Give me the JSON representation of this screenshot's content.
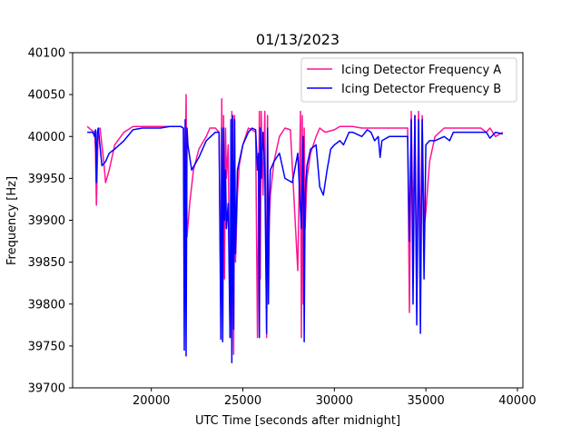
{
  "chart_data": {
    "type": "line",
    "title": "01/13/2023",
    "xlabel": "UTC Time [seconds after midnight]",
    "ylabel": "Frequency [Hz]",
    "xlim": [
      15700,
      40300
    ],
    "ylim": [
      39700,
      40100
    ],
    "xticks": [
      20000,
      25000,
      30000,
      35000,
      40000
    ],
    "xtick_labels": [
      "20000",
      "25000",
      "30000",
      "35000",
      "40000"
    ],
    "yticks": [
      39700,
      39750,
      39800,
      39850,
      39900,
      39950,
      40000,
      40050,
      40100
    ],
    "ytick_labels": [
      "39700",
      "39750",
      "39800",
      "39850",
      "39900",
      "39950",
      "40000",
      "40050",
      "40100"
    ],
    "grid": false,
    "legend_position": "top-right",
    "series": [
      {
        "name": "Icing Detector Frequency A",
        "color": "#ff1493",
        "x": [
          16500,
          16700,
          16900,
          16950,
          17000,
          17050,
          17100,
          17200,
          17400,
          17500,
          17700,
          18000,
          18500,
          19000,
          19500,
          20500,
          21000,
          21600,
          21750,
          21850,
          21900,
          21950,
          22100,
          22300,
          22600,
          23000,
          23200,
          23500,
          23700,
          23800,
          23850,
          23900,
          23950,
          24000,
          24050,
          24100,
          24200,
          24300,
          24400,
          24500,
          24550,
          24600,
          24700,
          24800,
          25000,
          25300,
          25500,
          25700,
          25800,
          25900,
          25950,
          26000,
          26100,
          26200,
          26300,
          26350,
          26400,
          26450,
          26500,
          26700,
          27000,
          27300,
          27600,
          28000,
          28150,
          28200,
          28250,
          28300,
          28350,
          28400,
          28500,
          28700,
          29000,
          29200,
          29500,
          30000,
          30300,
          31000,
          31500,
          32000,
          33000,
          33500,
          34000,
          34100,
          34200,
          34300,
          34400,
          34500,
          34600,
          34700,
          34800,
          34900,
          35000,
          35200,
          35500,
          36000,
          37000,
          38000,
          38300,
          38500,
          38800,
          39200
        ],
        "y": [
          40012,
          40008,
          40005,
          39985,
          39918,
          39965,
          40008,
          40010,
          39970,
          39945,
          39960,
          39990,
          40005,
          40012,
          40012,
          40012,
          40012,
          40012,
          40010,
          39950,
          40050,
          39880,
          39920,
          39960,
          39985,
          40000,
          40010,
          40010,
          40005,
          39790,
          40045,
          39760,
          40025,
          39830,
          40010,
          39950,
          39990,
          39760,
          40030,
          39740,
          40025,
          39850,
          39930,
          39965,
          39990,
          40010,
          40008,
          40005,
          39760,
          40030,
          39830,
          40030,
          39930,
          40030,
          39760,
          40025,
          39850,
          39900,
          39930,
          39970,
          40000,
          40010,
          40008,
          39840,
          40030,
          39760,
          40025,
          39800,
          40010,
          39890,
          39950,
          39980,
          40000,
          40010,
          40005,
          40008,
          40012,
          40012,
          40010,
          40010,
          40010,
          40010,
          40010,
          39790,
          40030,
          39880,
          40025,
          39810,
          40030,
          39850,
          40025,
          39890,
          39910,
          39970,
          40000,
          40010,
          40010,
          40010,
          40005,
          40010,
          40000,
          40005
        ]
      },
      {
        "name": "Icing Detector Frequency B",
        "color": "#0000ff",
        "x": [
          16500,
          16800,
          16900,
          16950,
          17000,
          17050,
          17100,
          17300,
          17500,
          17700,
          18000,
          18500,
          19000,
          19500,
          20500,
          21000,
          21600,
          21750,
          21800,
          21850,
          21900,
          21950,
          22000,
          22200,
          22600,
          23000,
          23500,
          23700,
          23800,
          23850,
          23900,
          23950,
          24000,
          24050,
          24100,
          24200,
          24300,
          24350,
          24400,
          24450,
          24500,
          24550,
          24600,
          24700,
          25000,
          25300,
          25500,
          25700,
          25800,
          25850,
          25900,
          25950,
          26000,
          26100,
          26200,
          26300,
          26350,
          26400,
          26450,
          26500,
          26700,
          27000,
          27300,
          27700,
          28000,
          28200,
          28300,
          28350,
          28400,
          28500,
          28700,
          29000,
          29200,
          29400,
          29600,
          29800,
          30000,
          30300,
          30500,
          30800,
          31000,
          31500,
          31800,
          32000,
          32200,
          32400,
          32500,
          32600,
          33000,
          33500,
          34000,
          34100,
          34200,
          34300,
          34400,
          34500,
          34600,
          34700,
          34800,
          34900,
          35000,
          35200,
          35500,
          36000,
          36300,
          36500,
          37000,
          38000,
          38300,
          38500,
          38800,
          39200
        ],
        "y": [
          40005,
          40005,
          40000,
          40008,
          39945,
          40005,
          40010,
          39965,
          39970,
          39980,
          39985,
          39995,
          40008,
          40010,
          40010,
          40012,
          40012,
          40010,
          39745,
          40020,
          39738,
          40010,
          39990,
          39960,
          39975,
          39995,
          40005,
          40005,
          39758,
          40010,
          39755,
          40010,
          39900,
          39960,
          39890,
          39920,
          39760,
          40020,
          39730,
          40025,
          39770,
          40020,
          39860,
          39960,
          39990,
          40005,
          40010,
          40008,
          39960,
          39980,
          39760,
          40010,
          39950,
          40005,
          39960,
          39765,
          40010,
          39800,
          39925,
          39960,
          39970,
          39980,
          39950,
          39945,
          39980,
          39890,
          40000,
          39755,
          39930,
          39965,
          39985,
          39990,
          39940,
          39930,
          39960,
          39985,
          39990,
          39995,
          39990,
          40005,
          40005,
          40000,
          40008,
          40005,
          39995,
          40000,
          39975,
          39995,
          40000,
          40000,
          40000,
          39875,
          40020,
          39800,
          40025,
          39775,
          40020,
          39765,
          40020,
          39830,
          39990,
          39995,
          39995,
          40000,
          39995,
          40005,
          40005,
          40005,
          40005,
          39998,
          40005,
          40003
        ]
      }
    ]
  }
}
